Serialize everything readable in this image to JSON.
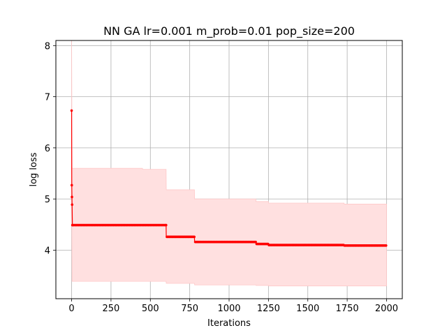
{
  "chart_data": {
    "type": "line",
    "title": "NN GA lr=0.001 m_prob=0.01 pop_size=200",
    "xlabel": "Iterations",
    "ylabel": "log loss",
    "xlim": [
      -100,
      2100
    ],
    "ylim": [
      3.05,
      8.1
    ],
    "xticks": [
      0,
      250,
      500,
      750,
      1000,
      1250,
      1500,
      1750,
      2000
    ],
    "yticks": [
      4,
      5,
      6,
      7,
      8
    ],
    "grid": true,
    "line_color": "#ff0000",
    "band_color": "#ffe0e0",
    "band_edge_color": "#ffc8c8",
    "series": [
      {
        "mean": [
          [
            0,
            6.73
          ],
          [
            1,
            5.27
          ],
          [
            2,
            5.04
          ],
          [
            3,
            4.89
          ],
          [
            5,
            4.49
          ],
          [
            600,
            4.49
          ],
          [
            601,
            4.26
          ],
          [
            780,
            4.26
          ],
          [
            781,
            4.16
          ],
          [
            1170,
            4.16
          ],
          [
            1171,
            4.12
          ],
          [
            1250,
            4.12
          ],
          [
            1251,
            4.1
          ],
          [
            1730,
            4.1
          ],
          [
            1731,
            4.09
          ],
          [
            2000,
            4.09
          ]
        ],
        "upper": [
          [
            0,
            8.1
          ],
          [
            3,
            5.6
          ],
          [
            5,
            5.6
          ],
          [
            450,
            5.6
          ],
          [
            451,
            5.58
          ],
          [
            600,
            5.58
          ],
          [
            601,
            5.18
          ],
          [
            780,
            5.18
          ],
          [
            781,
            5.0
          ],
          [
            1170,
            5.0
          ],
          [
            1171,
            4.95
          ],
          [
            1250,
            4.95
          ],
          [
            1251,
            4.92
          ],
          [
            1730,
            4.92
          ],
          [
            1731,
            4.9
          ],
          [
            2000,
            4.9
          ]
        ],
        "lower": [
          [
            0,
            5.3
          ],
          [
            3,
            3.39
          ],
          [
            5,
            3.39
          ],
          [
            600,
            3.39
          ],
          [
            601,
            3.35
          ],
          [
            780,
            3.35
          ],
          [
            781,
            3.32
          ],
          [
            1170,
            3.32
          ],
          [
            1171,
            3.31
          ],
          [
            1250,
            3.31
          ],
          [
            1251,
            3.3
          ],
          [
            2000,
            3.3
          ]
        ]
      }
    ]
  }
}
